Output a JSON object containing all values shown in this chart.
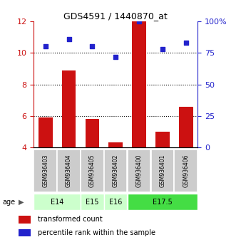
{
  "title": "GDS4591 / 1440870_at",
  "samples": [
    "GSM936403",
    "GSM936404",
    "GSM936405",
    "GSM936402",
    "GSM936400",
    "GSM936401",
    "GSM936406"
  ],
  "transformed_counts": [
    5.9,
    8.9,
    5.8,
    4.3,
    12.0,
    5.0,
    6.6
  ],
  "percentile_ranks": [
    80,
    86,
    80,
    72,
    100,
    78,
    83
  ],
  "age_groups": [
    {
      "label": "E14",
      "samples": [
        0,
        1
      ],
      "color": "#ccffcc"
    },
    {
      "label": "E15",
      "samples": [
        2
      ],
      "color": "#ccffcc"
    },
    {
      "label": "E16",
      "samples": [
        3
      ],
      "color": "#ccffcc"
    },
    {
      "label": "E17.5",
      "samples": [
        4,
        5,
        6
      ],
      "color": "#44dd44"
    }
  ],
  "ylim_left": [
    4,
    12
  ],
  "yticks_left": [
    4,
    6,
    8,
    10,
    12
  ],
  "yticks_right": [
    0,
    25,
    50,
    75,
    100
  ],
  "ytick_labels_right": [
    "0",
    "25",
    "50",
    "75",
    "100%"
  ],
  "gridlines_at": [
    6,
    8,
    10
  ],
  "bar_color": "#cc1111",
  "dot_color": "#2222cc",
  "bar_width": 0.6,
  "dot_size": 22,
  "dot_marker": "s",
  "left_axis_color": "#cc1111",
  "right_axis_color": "#2222cc",
  "legend_bar_label": "transformed count",
  "legend_dot_label": "percentile rank within the sample",
  "age_label": "age",
  "sample_box_color": "#cccccc",
  "age_e14_color": "#ccffcc",
  "age_e15_color": "#ccffcc",
  "age_e16_color": "#ccffcc",
  "age_e17_color": "#44dd44"
}
